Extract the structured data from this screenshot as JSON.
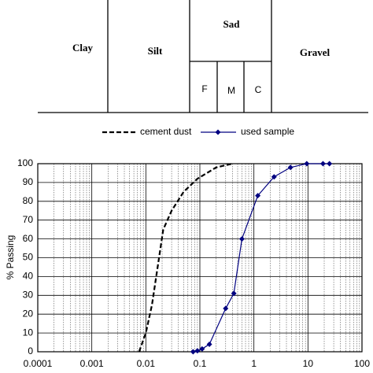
{
  "classification": {
    "labels": [
      "Clay",
      "Silt",
      "Sad",
      "Gravel"
    ],
    "sand_parts": [
      "F",
      "M",
      "C"
    ]
  },
  "chart_data": {
    "type": "line",
    "y_label": "% Passing",
    "log_x": true,
    "grid": true,
    "minor_grid": true,
    "legend": "top",
    "xlim": [
      0.0001,
      100
    ],
    "xticks": [
      0.0001,
      0.001,
      0.01,
      0.1,
      1,
      10,
      100
    ],
    "ylim": [
      0,
      100
    ],
    "yticks": [
      0,
      10,
      20,
      30,
      40,
      50,
      60,
      70,
      80,
      90,
      100
    ],
    "series": [
      {
        "name": "cement dust",
        "color": "#000000",
        "style": "dashed",
        "marker": "none",
        "x": [
          0.0075,
          0.01,
          0.013,
          0.021,
          0.03,
          0.05,
          0.09,
          0.2,
          0.4
        ],
        "values": [
          0,
          10,
          25,
          65,
          75,
          85,
          92,
          98,
          100
        ]
      },
      {
        "name": "used sample",
        "color": "#000080",
        "style": "solid",
        "marker": "diamond",
        "x": [
          0.075,
          0.09,
          0.11,
          0.15,
          0.3,
          0.425,
          0.6,
          1.18,
          2.36,
          4.75,
          9.5,
          19,
          25
        ],
        "values": [
          0,
          0.5,
          1.5,
          4,
          23,
          31,
          60,
          83,
          93,
          98,
          100,
          100,
          100
        ]
      }
    ]
  }
}
